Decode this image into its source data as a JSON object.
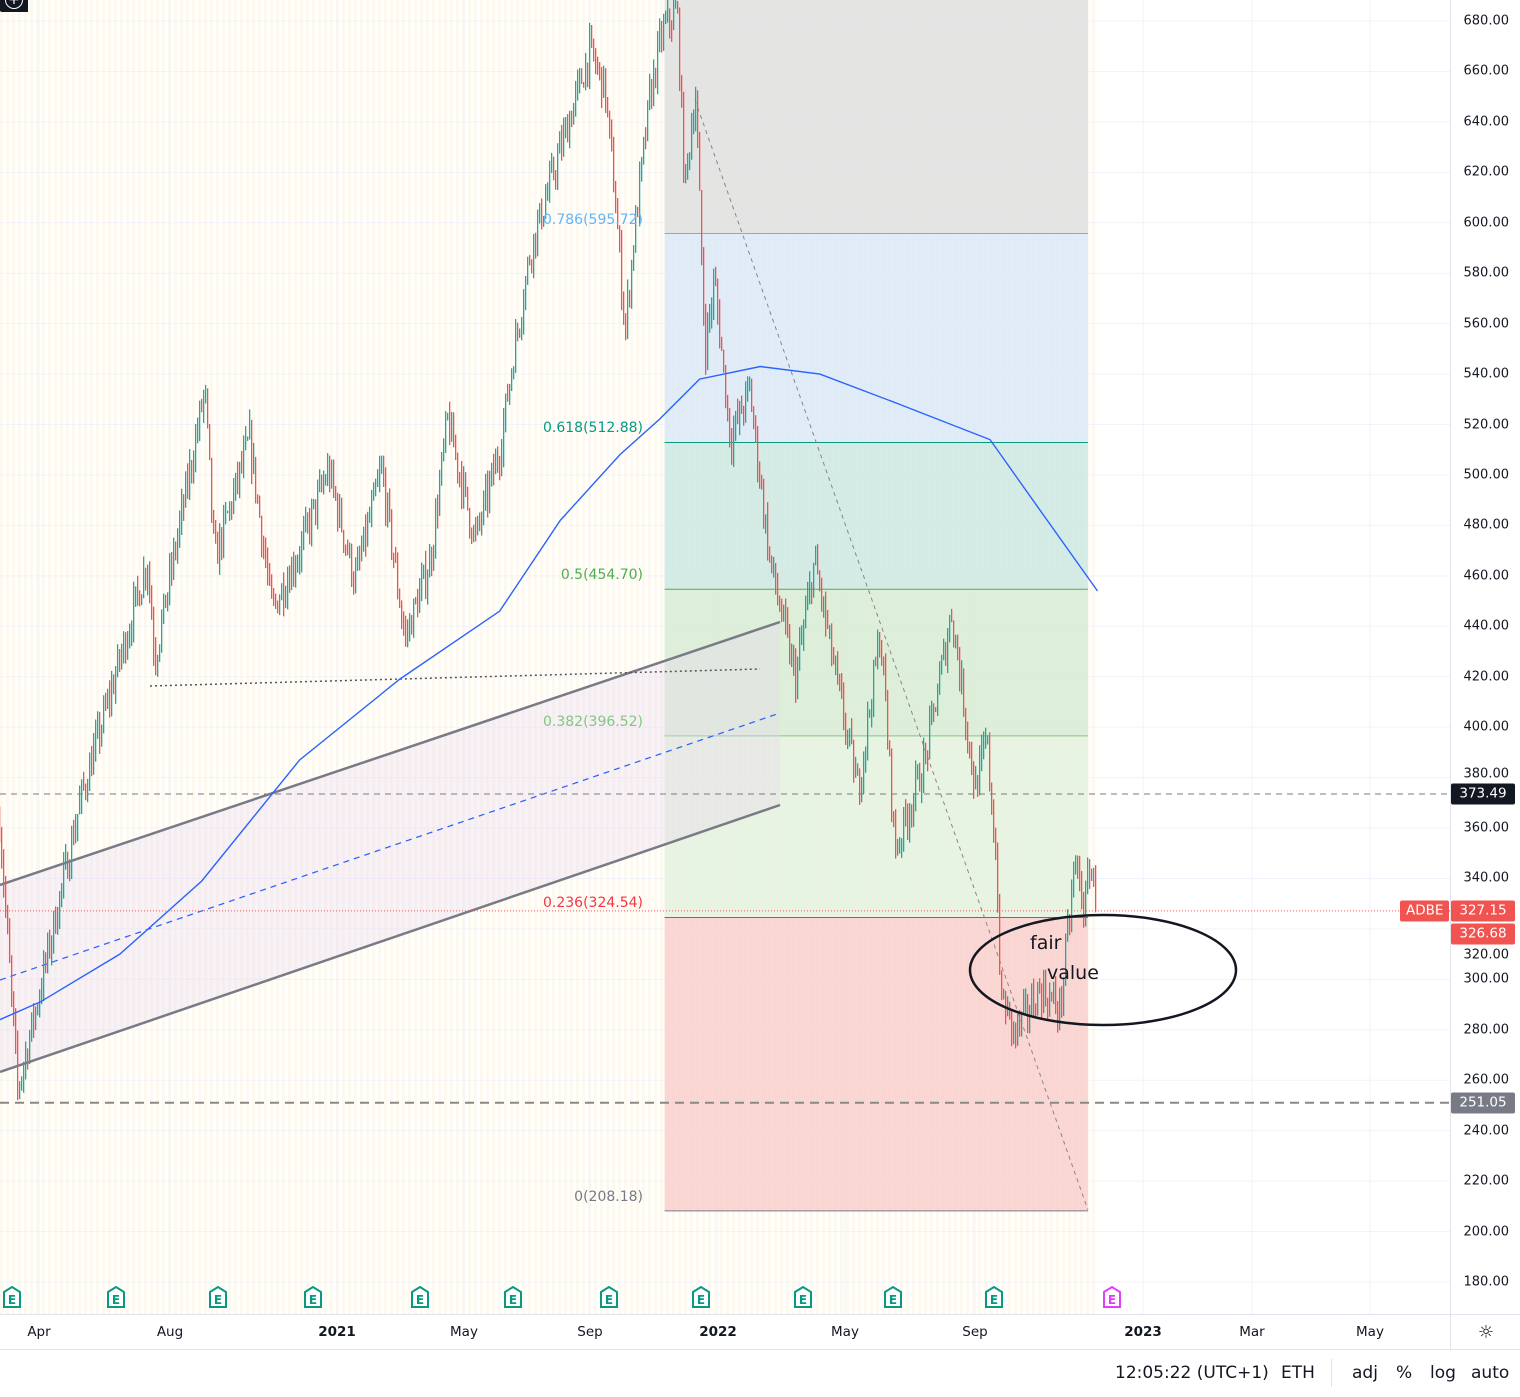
{
  "chart_data": {
    "type": "candlestick",
    "symbol": "ADBE",
    "ylim": [
      170,
      690
    ],
    "y_ticks": [
      "180.00",
      "200.00",
      "220.00",
      "240.00",
      "260.00",
      "280.00",
      "300.00",
      "320.00",
      "340.00",
      "360.00",
      "380.00",
      "400.00",
      "420.00",
      "440.00",
      "460.00",
      "480.00",
      "500.00",
      "520.00",
      "540.00",
      "560.00",
      "580.00",
      "600.00",
      "620.00",
      "640.00",
      "660.00",
      "680.00"
    ],
    "x_ticks": [
      {
        "label": "Apr",
        "bold": false
      },
      {
        "label": "Aug",
        "bold": false
      },
      {
        "label": "2021",
        "bold": true
      },
      {
        "label": "May",
        "bold": false
      },
      {
        "label": "Sep",
        "bold": false
      },
      {
        "label": "2022",
        "bold": true
      },
      {
        "label": "May",
        "bold": false
      },
      {
        "label": "Sep",
        "bold": false
      },
      {
        "label": "2023",
        "bold": true
      },
      {
        "label": "Mar",
        "bold": false
      },
      {
        "label": "May",
        "bold": false
      }
    ],
    "price_path": [
      [
        "2020-02-24",
        363
      ],
      [
        "2020-03-12",
        256
      ],
      [
        "2020-04-02",
        296
      ],
      [
        "2020-05-10",
        371
      ],
      [
        "2020-06-26",
        442
      ],
      [
        "2020-07-12",
        466
      ],
      [
        "2020-07-19",
        427
      ],
      [
        "2020-09-04",
        534
      ],
      [
        "2020-09-13",
        466
      ],
      [
        "2020-10-16",
        514
      ],
      [
        "2020-11-06",
        446
      ],
      [
        "2020-12-02",
        470
      ],
      [
        "2020-12-29",
        502
      ],
      [
        "2021-01-23",
        458
      ],
      [
        "2021-02-17",
        502
      ],
      [
        "2021-03-11",
        435
      ],
      [
        "2021-04-04",
        466
      ],
      [
        "2021-04-20",
        522
      ],
      [
        "2021-05-16",
        474
      ],
      [
        "2021-06-08",
        510
      ],
      [
        "2021-06-22",
        550
      ],
      [
        "2021-07-07",
        589
      ],
      [
        "2021-08-04",
        629
      ],
      [
        "2021-09-01",
        668
      ],
      [
        "2021-09-15",
        653
      ],
      [
        "2021-09-24",
        613
      ],
      [
        "2021-10-04",
        557
      ],
      [
        "2021-10-13",
        597
      ],
      [
        "2021-10-27",
        649
      ],
      [
        "2021-11-08",
        676
      ],
      [
        "2021-11-22",
        684
      ],
      [
        "2021-11-29",
        613
      ],
      [
        "2021-12-09",
        653
      ],
      [
        "2021-12-18",
        550
      ],
      [
        "2021-12-27",
        577
      ],
      [
        "2022-01-11",
        514
      ],
      [
        "2022-01-29",
        534
      ],
      [
        "2022-02-17",
        466
      ],
      [
        "2022-03-13",
        419
      ],
      [
        "2022-03-31",
        466
      ],
      [
        "2022-04-24",
        411
      ],
      [
        "2022-05-11",
        375
      ],
      [
        "2022-06-01",
        438
      ],
      [
        "2022-06-15",
        351
      ],
      [
        "2022-07-13",
        387
      ],
      [
        "2022-08-07",
        446
      ],
      [
        "2022-08-29",
        375
      ],
      [
        "2022-09-09",
        395
      ],
      [
        "2022-09-19",
        339
      ],
      [
        "2022-09-21",
        296
      ],
      [
        "2022-10-05",
        278
      ],
      [
        "2022-10-29",
        296
      ],
      [
        "2022-11-17",
        288
      ],
      [
        "2022-12-01",
        347
      ],
      [
        "2022-12-10",
        327
      ],
      [
        "2022-12-15",
        347
      ],
      [
        "2022-12-22",
        327
      ]
    ],
    "moving_average": [
      [
        "2020-02-24",
        284
      ],
      [
        "2020-04-02",
        291
      ],
      [
        "2020-06-16",
        310
      ],
      [
        "2020-09-01",
        339
      ],
      [
        "2020-12-02",
        387
      ],
      [
        "2021-03-06",
        419
      ],
      [
        "2021-06-08",
        446
      ],
      [
        "2021-08-04",
        482
      ],
      [
        "2021-09-29",
        508
      ],
      [
        "2021-11-05",
        522
      ],
      [
        "2021-12-13",
        538
      ],
      [
        "2022-02-08",
        543
      ],
      [
        "2022-04-05",
        540
      ],
      [
        "2022-06-19",
        528
      ],
      [
        "2022-09-12",
        514
      ],
      [
        "2022-10-29",
        486
      ],
      [
        "2022-12-22",
        454
      ]
    ],
    "fibonacci": {
      "start": "2021-11-10",
      "end": "2022-12-13",
      "levels": [
        {
          "label": "0.786(595.72)",
          "value": 595.72,
          "color": "#64b5f6",
          "fill": "#dbe9f7"
        },
        {
          "label": "0.618(512.88)",
          "value": 512.88,
          "color": "#089981",
          "fill": "#cce8e2"
        },
        {
          "label": "0.5(454.70)",
          "value": 454.7,
          "color": "#4caf50",
          "fill": "#d7ecd5"
        },
        {
          "label": "0.382(396.52)",
          "value": 396.52,
          "color": "#81c784",
          "fill": "#e4f2de"
        },
        {
          "label": "0.236(324.54)",
          "value": 324.54,
          "color": "#f23645",
          "fill": "#f9d0cc"
        },
        {
          "label": "0(208.18)",
          "value": 208.18,
          "color": "#787b86",
          "fill": null
        }
      ],
      "top_fill": "#e1e1e1"
    },
    "horizontal_lines": [
      {
        "value": 373.49
      },
      {
        "value": 251.05
      }
    ],
    "price_tags": [
      {
        "label": "373.49",
        "value": 373.49,
        "color": "#131722"
      },
      {
        "label": "327.15",
        "symbol": "ADBE",
        "value": 327.15,
        "color": "#f05350"
      },
      {
        "label": "326.68",
        "value": 326.68,
        "color": "#f05350"
      },
      {
        "label": "251.05",
        "value": 251.05,
        "color": "#787b86"
      }
    ],
    "annotation": {
      "line1": "fair",
      "line2": "value"
    },
    "colors": {
      "up": "#26a69a",
      "down": "#ef5350",
      "ma": "#2962ff",
      "channel": "#787b86",
      "earnings": "#089981",
      "earnings_upcoming": "#e040fb"
    }
  },
  "status_bar": {
    "time": "12:05:22 (UTC+1)",
    "session": "ETH",
    "adj": "adj",
    "percent": "%",
    "log": "log",
    "auto": "auto"
  },
  "earnings_label": "E"
}
